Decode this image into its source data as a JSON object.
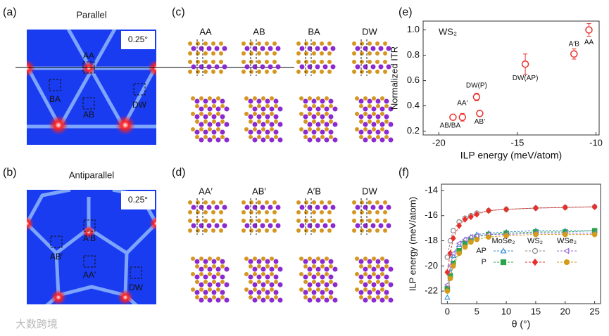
{
  "panels": [
    "(a)",
    "(b)",
    "(c)",
    "(d)",
    "(e)",
    "(f)"
  ],
  "heatmap_a": {
    "title": "Parallel",
    "twist": "0.25°",
    "sites": [
      "AA",
      "BA",
      "AB",
      "DW"
    ]
  },
  "heatmap_b": {
    "title": "Antiparallel",
    "twist": "0.25°",
    "sites": [
      "A′B",
      "AB′",
      "AA′",
      "DW"
    ]
  },
  "structures_c": [
    "AA",
    "AB",
    "BA",
    "DW"
  ],
  "structures_d": [
    "AA′",
    "AB′",
    "A′B",
    "DW"
  ],
  "watermark": "大数跨境",
  "chart_data": [
    {
      "type": "scatter",
      "title": "WS₂",
      "x_label": "ILP energy (meV/atom)",
      "y_label": "Normalized ITR",
      "x": [
        -19.1,
        -18.5,
        -17.6,
        -17.4,
        -14.5,
        -11.4,
        -10.45
      ],
      "values": [
        0.31,
        0.31,
        0.47,
        0.34,
        0.73,
        0.81,
        1.0
      ],
      "errors": [
        0.015,
        0.03,
        0.03,
        0.02,
        0.08,
        0.04,
        0.05
      ],
      "point_labels": [
        "AB/BA",
        "AA′",
        "DW(P)",
        "AB′",
        "DW(AP)",
        "A′B",
        "AA"
      ],
      "color": "#e8302a",
      "xlim": [
        -21,
        -9.8
      ],
      "xticks": [
        -20,
        -15,
        -10
      ],
      "ylim": [
        0.17,
        1.07
      ],
      "yticks": [
        0.2,
        0.4,
        0.6,
        0.8,
        {
          "value": 1,
          "label": "1.0"
        }
      ]
    },
    {
      "type": "line",
      "x_label": "θ (°)",
      "y_label": "ILP energy (meV/atom)",
      "x": [
        0,
        0.5,
        1,
        2,
        3,
        4,
        5,
        7,
        10,
        15,
        20,
        25
      ],
      "series_groups": [
        {
          "name": "MoSe₂",
          "series": [
            {
              "name": "AP",
              "color": "#3a8fd8",
              "marker": "triangle",
              "filled": false,
              "values": [
                -22.5,
                -20.5,
                -19.2,
                -18.3,
                -17.9,
                -17.7,
                -17.5,
                -17.4,
                -17.3,
                -17.2,
                -17.2,
                -17.2
              ]
            },
            {
              "name": "P",
              "color": "#2aa34a",
              "marker": "square",
              "filled": true,
              "values": [
                -21.8,
                -20.8,
                -19.8,
                -18.8,
                -18.2,
                -17.9,
                -17.7,
                -17.5,
                -17.4,
                -17.3,
                -17.3,
                -17.2
              ]
            }
          ]
        },
        {
          "name": "WS₂",
          "series": [
            {
              "name": "AP",
              "color": "#888888",
              "marker": "circle",
              "filled": false,
              "values": [
                -19.3,
                -18,
                -17.2,
                -16.5,
                -16.2,
                -16,
                -15.8,
                -15.6,
                -15.5,
                -15.4,
                -15.35,
                -15.3
              ]
            },
            {
              "name": "P",
              "color": "#e8302a",
              "marker": "diamond",
              "filled": true,
              "values": [
                -20.5,
                -19,
                -17.8,
                -16.8,
                -16.3,
                -16.1,
                -15.9,
                -15.6,
                -15.5,
                -15.4,
                -15.35,
                -15.3
              ]
            }
          ]
        },
        {
          "name": "WSe₂",
          "series": [
            {
              "name": "AP",
              "color": "#9a6ad8",
              "marker": "triangle-left",
              "filled": false,
              "values": [
                -21.5,
                -20,
                -19,
                -18.2,
                -17.9,
                -17.7,
                -17.6,
                -17.5,
                -17.5,
                -17.4,
                -17.4,
                -17.4
              ]
            },
            {
              "name": "P",
              "color": "#d49a1a",
              "marker": "circle",
              "filled": true,
              "values": [
                -22,
                -21,
                -20,
                -19,
                -18.5,
                -18.1,
                -17.9,
                -17.7,
                -17.6,
                -17.5,
                -17.5,
                -17.5
              ]
            }
          ]
        }
      ],
      "xlim": [
        -1,
        26
      ],
      "xticks": [
        0,
        5,
        10,
        15,
        20,
        25
      ],
      "ylim": [
        -23,
        -13.5
      ],
      "yticks": [
        -22,
        -20,
        -18,
        -16,
        -14
      ]
    }
  ]
}
